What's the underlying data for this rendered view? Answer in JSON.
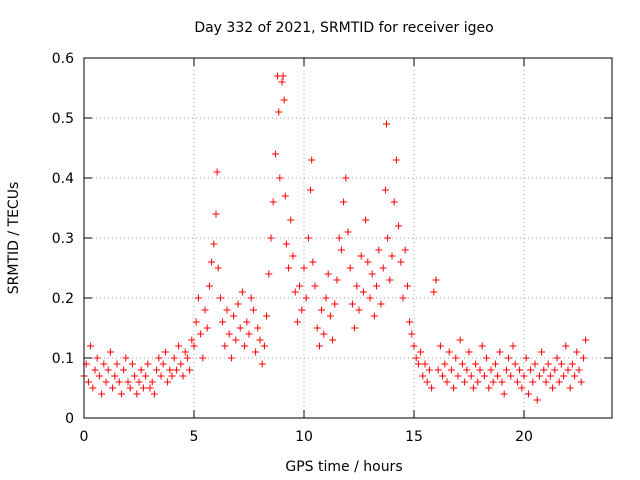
{
  "chart_data": {
    "type": "scatter",
    "title": "Day 332 of 2021, SRMTID for receiver igeo",
    "xlabel": "GPS time / hours",
    "ylabel": "SRMTID / TECUs",
    "xlim": [
      0,
      24
    ],
    "ylim": [
      0,
      0.6
    ],
    "xticks": [
      0,
      5,
      10,
      15,
      20
    ],
    "xtick_labels": [
      "0",
      "5",
      "10",
      "15",
      "20"
    ],
    "yticks": [
      0,
      0.1,
      0.2,
      0.3,
      0.4,
      0.5,
      0.6
    ],
    "ytick_labels": [
      "0",
      "0.1",
      "0.2",
      "0.3",
      "0.4",
      "0.5",
      "0.6"
    ],
    "grid": true,
    "marker": "+",
    "color": "#ff0000",
    "series": [
      {
        "name": "SRMTID",
        "points": [
          [
            0.0,
            0.07
          ],
          [
            0.1,
            0.09
          ],
          [
            0.2,
            0.06
          ],
          [
            0.3,
            0.12
          ],
          [
            0.4,
            0.05
          ],
          [
            0.5,
            0.08
          ],
          [
            0.6,
            0.1
          ],
          [
            0.7,
            0.07
          ],
          [
            0.8,
            0.04
          ],
          [
            0.9,
            0.09
          ],
          [
            1.0,
            0.06
          ],
          [
            1.1,
            0.08
          ],
          [
            1.2,
            0.11
          ],
          [
            1.3,
            0.05
          ],
          [
            1.4,
            0.07
          ],
          [
            1.5,
            0.09
          ],
          [
            1.6,
            0.06
          ],
          [
            1.7,
            0.04
          ],
          [
            1.8,
            0.08
          ],
          [
            1.9,
            0.1
          ],
          [
            2.0,
            0.06
          ],
          [
            2.1,
            0.05
          ],
          [
            2.2,
            0.09
          ],
          [
            2.3,
            0.07
          ],
          [
            2.4,
            0.04
          ],
          [
            2.5,
            0.06
          ],
          [
            2.6,
            0.08
          ],
          [
            2.7,
            0.05
          ],
          [
            2.8,
            0.07
          ],
          [
            2.9,
            0.09
          ],
          [
            3.0,
            0.05
          ],
          [
            3.1,
            0.06
          ],
          [
            3.2,
            0.04
          ],
          [
            3.3,
            0.08
          ],
          [
            3.4,
            0.1
          ],
          [
            3.5,
            0.07
          ],
          [
            3.6,
            0.09
          ],
          [
            3.7,
            0.11
          ],
          [
            3.8,
            0.06
          ],
          [
            3.9,
            0.08
          ],
          [
            4.0,
            0.07
          ],
          [
            4.1,
            0.1
          ],
          [
            4.2,
            0.08
          ],
          [
            4.3,
            0.12
          ],
          [
            4.4,
            0.09
          ],
          [
            4.5,
            0.07
          ],
          [
            4.6,
            0.11
          ],
          [
            4.7,
            0.1
          ],
          [
            4.8,
            0.08
          ],
          [
            4.9,
            0.13
          ],
          [
            5.0,
            0.12
          ],
          [
            5.1,
            0.16
          ],
          [
            5.2,
            0.2
          ],
          [
            5.3,
            0.14
          ],
          [
            5.4,
            0.1
          ],
          [
            5.5,
            0.18
          ],
          [
            5.6,
            0.15
          ],
          [
            5.7,
            0.22
          ],
          [
            5.8,
            0.26
          ],
          [
            5.9,
            0.29
          ],
          [
            6.0,
            0.34
          ],
          [
            6.05,
            0.41
          ],
          [
            6.1,
            0.25
          ],
          [
            6.2,
            0.2
          ],
          [
            6.3,
            0.16
          ],
          [
            6.4,
            0.12
          ],
          [
            6.5,
            0.18
          ],
          [
            6.6,
            0.14
          ],
          [
            6.7,
            0.1
          ],
          [
            6.8,
            0.17
          ],
          [
            6.9,
            0.13
          ],
          [
            7.0,
            0.19
          ],
          [
            7.1,
            0.15
          ],
          [
            7.2,
            0.21
          ],
          [
            7.3,
            0.12
          ],
          [
            7.4,
            0.16
          ],
          [
            7.5,
            0.14
          ],
          [
            7.6,
            0.2
          ],
          [
            7.7,
            0.18
          ],
          [
            7.8,
            0.11
          ],
          [
            7.9,
            0.15
          ],
          [
            8.0,
            0.13
          ],
          [
            8.1,
            0.09
          ],
          [
            8.2,
            0.12
          ],
          [
            8.3,
            0.17
          ],
          [
            8.4,
            0.24
          ],
          [
            8.5,
            0.3
          ],
          [
            8.6,
            0.36
          ],
          [
            8.7,
            0.44
          ],
          [
            8.8,
            0.57
          ],
          [
            8.85,
            0.51
          ],
          [
            8.9,
            0.4
          ],
          [
            9.0,
            0.56
          ],
          [
            9.05,
            0.57
          ],
          [
            9.1,
            0.53
          ],
          [
            9.15,
            0.37
          ],
          [
            9.2,
            0.29
          ],
          [
            9.3,
            0.25
          ],
          [
            9.4,
            0.33
          ],
          [
            9.5,
            0.27
          ],
          [
            9.6,
            0.21
          ],
          [
            9.7,
            0.16
          ],
          [
            9.8,
            0.22
          ],
          [
            9.9,
            0.18
          ],
          [
            10.0,
            0.25
          ],
          [
            10.1,
            0.2
          ],
          [
            10.2,
            0.3
          ],
          [
            10.3,
            0.38
          ],
          [
            10.35,
            0.43
          ],
          [
            10.4,
            0.26
          ],
          [
            10.5,
            0.22
          ],
          [
            10.6,
            0.15
          ],
          [
            10.7,
            0.12
          ],
          [
            10.8,
            0.18
          ],
          [
            10.9,
            0.14
          ],
          [
            11.0,
            0.2
          ],
          [
            11.1,
            0.24
          ],
          [
            11.2,
            0.17
          ],
          [
            11.3,
            0.13
          ],
          [
            11.4,
            0.19
          ],
          [
            11.5,
            0.23
          ],
          [
            11.6,
            0.3
          ],
          [
            11.7,
            0.28
          ],
          [
            11.8,
            0.36
          ],
          [
            11.9,
            0.4
          ],
          [
            12.0,
            0.31
          ],
          [
            12.1,
            0.25
          ],
          [
            12.2,
            0.19
          ],
          [
            12.3,
            0.15
          ],
          [
            12.4,
            0.22
          ],
          [
            12.5,
            0.18
          ],
          [
            12.6,
            0.27
          ],
          [
            12.7,
            0.21
          ],
          [
            12.8,
            0.33
          ],
          [
            12.9,
            0.26
          ],
          [
            13.0,
            0.2
          ],
          [
            13.1,
            0.24
          ],
          [
            13.2,
            0.17
          ],
          [
            13.3,
            0.22
          ],
          [
            13.4,
            0.28
          ],
          [
            13.5,
            0.19
          ],
          [
            13.6,
            0.25
          ],
          [
            13.7,
            0.38
          ],
          [
            13.75,
            0.49
          ],
          [
            13.8,
            0.3
          ],
          [
            13.9,
            0.23
          ],
          [
            14.0,
            0.27
          ],
          [
            14.1,
            0.36
          ],
          [
            14.2,
            0.43
          ],
          [
            14.3,
            0.32
          ],
          [
            14.4,
            0.26
          ],
          [
            14.5,
            0.2
          ],
          [
            14.6,
            0.28
          ],
          [
            14.7,
            0.22
          ],
          [
            14.8,
            0.16
          ],
          [
            14.9,
            0.14
          ],
          [
            15.0,
            0.12
          ],
          [
            15.1,
            0.1
          ],
          [
            15.2,
            0.09
          ],
          [
            15.3,
            0.11
          ],
          [
            15.4,
            0.07
          ],
          [
            15.5,
            0.09
          ],
          [
            15.6,
            0.06
          ],
          [
            15.7,
            0.08
          ],
          [
            15.8,
            0.05
          ],
          [
            15.9,
            0.21
          ],
          [
            16.0,
            0.23
          ],
          [
            16.1,
            0.08
          ],
          [
            16.2,
            0.12
          ],
          [
            16.3,
            0.07
          ],
          [
            16.4,
            0.09
          ],
          [
            16.5,
            0.06
          ],
          [
            16.6,
            0.11
          ],
          [
            16.7,
            0.08
          ],
          [
            16.8,
            0.05
          ],
          [
            16.9,
            0.1
          ],
          [
            17.0,
            0.07
          ],
          [
            17.1,
            0.13
          ],
          [
            17.2,
            0.09
          ],
          [
            17.3,
            0.06
          ],
          [
            17.4,
            0.08
          ],
          [
            17.5,
            0.11
          ],
          [
            17.6,
            0.07
          ],
          [
            17.7,
            0.05
          ],
          [
            17.8,
            0.09
          ],
          [
            17.9,
            0.06
          ],
          [
            18.0,
            0.08
          ],
          [
            18.1,
            0.12
          ],
          [
            18.2,
            0.07
          ],
          [
            18.3,
            0.1
          ],
          [
            18.4,
            0.05
          ],
          [
            18.5,
            0.08
          ],
          [
            18.6,
            0.06
          ],
          [
            18.7,
            0.09
          ],
          [
            18.8,
            0.07
          ],
          [
            18.9,
            0.11
          ],
          [
            19.0,
            0.06
          ],
          [
            19.1,
            0.04
          ],
          [
            19.2,
            0.08
          ],
          [
            19.3,
            0.1
          ],
          [
            19.4,
            0.07
          ],
          [
            19.5,
            0.12
          ],
          [
            19.6,
            0.09
          ],
          [
            19.7,
            0.06
          ],
          [
            19.8,
            0.08
          ],
          [
            19.9,
            0.05
          ],
          [
            20.0,
            0.07
          ],
          [
            20.1,
            0.1
          ],
          [
            20.2,
            0.04
          ],
          [
            20.3,
            0.08
          ],
          [
            20.4,
            0.06
          ],
          [
            20.5,
            0.09
          ],
          [
            20.6,
            0.03
          ],
          [
            20.7,
            0.07
          ],
          [
            20.8,
            0.11
          ],
          [
            20.9,
            0.08
          ],
          [
            21.0,
            0.06
          ],
          [
            21.1,
            0.09
          ],
          [
            21.2,
            0.07
          ],
          [
            21.3,
            0.05
          ],
          [
            21.4,
            0.08
          ],
          [
            21.5,
            0.1
          ],
          [
            21.6,
            0.06
          ],
          [
            21.7,
            0.09
          ],
          [
            21.8,
            0.07
          ],
          [
            21.9,
            0.12
          ],
          [
            22.0,
            0.08
          ],
          [
            22.1,
            0.05
          ],
          [
            22.2,
            0.09
          ],
          [
            22.3,
            0.07
          ],
          [
            22.4,
            0.11
          ],
          [
            22.5,
            0.08
          ],
          [
            22.6,
            0.06
          ],
          [
            22.7,
            0.1
          ],
          [
            22.8,
            0.13
          ]
        ]
      }
    ]
  }
}
